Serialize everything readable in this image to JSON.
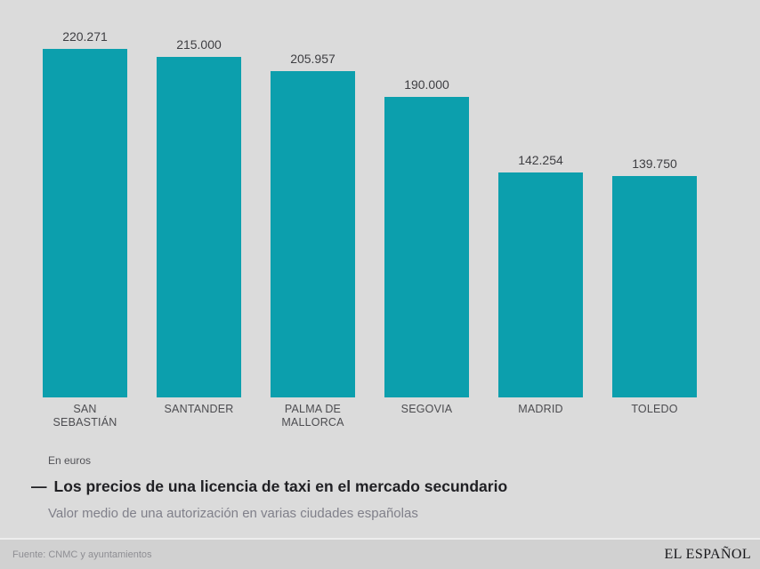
{
  "chart_data": {
    "type": "bar",
    "title": "Los precios de una licencia de taxi en el mercado secundario",
    "title_dash": "—",
    "subtitle": "Valor medio de una autorización en varias ciudades españolas",
    "unit_label": "En euros",
    "categories": [
      "SAN SEBASTIÁN",
      "SANTANDER",
      "PALMA DE MALLORCA",
      "SEGOVIA",
      "MADRID",
      "TOLEDO"
    ],
    "category_lines": [
      [
        "SAN",
        "SEBASTIÁN"
      ],
      [
        "SANTANDER"
      ],
      [
        "PALMA DE",
        "MALLORCA"
      ],
      [
        "SEGOVIA"
      ],
      [
        "MADRID"
      ],
      [
        "TOLEDO"
      ]
    ],
    "values": [
      220271,
      215000,
      205957,
      190000,
      142254,
      139750
    ],
    "value_labels": [
      "220.271",
      "215.000",
      "205.957",
      "190.000",
      "142.254",
      "139.750"
    ],
    "ylim": [
      0,
      220271
    ],
    "xlabel": "",
    "ylabel": "En euros",
    "grid": false,
    "legend": false,
    "bar_color": "#0c9fad",
    "background_color": "#dbdbdb"
  },
  "footer": {
    "source": "Fuente: CNMC y ayuntamientos",
    "brand": "EL ESPAÑOL"
  }
}
